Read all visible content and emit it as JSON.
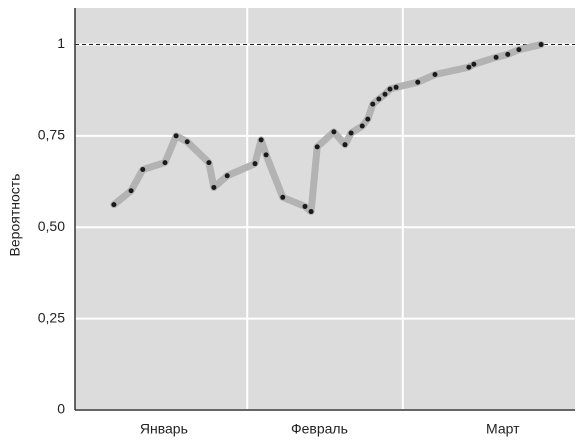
{
  "chart_data": {
    "type": "line",
    "ylabel": "Вероятность",
    "x": [
      7.0,
      10.1,
      12.2,
      16.2,
      18.2,
      20.2,
      24.1,
      25.0,
      27.4,
      32.4,
      33.5,
      34.4,
      37.4,
      41.4,
      42.5,
      43.6,
      46.6,
      48.6,
      49.7,
      51.7,
      52.7,
      53.6,
      54.7,
      55.8,
      56.7,
      57.8,
      61.7,
      64.8,
      70.9,
      71.8,
      75.8,
      77.9,
      79.9,
      83.9
    ],
    "series": [
      {
        "color": "#b3b3b3",
        "marker_color": "#1a1a1a",
        "values": [
          0.562,
          0.6,
          0.658,
          0.677,
          0.75,
          0.734,
          0.677,
          0.609,
          0.641,
          0.674,
          0.739,
          0.698,
          0.582,
          0.557,
          0.543,
          0.72,
          0.761,
          0.726,
          0.758,
          0.777,
          0.796,
          0.837,
          0.851,
          0.864,
          0.878,
          0.883,
          0.897,
          0.918,
          0.938,
          0.946,
          0.965,
          0.973,
          0.986,
          1.0
        ]
      }
    ],
    "xlim": [
      0,
      90
    ],
    "xticks": [
      {
        "value": 16,
        "label": "Январь"
      },
      {
        "value": 44,
        "label": "Февраль"
      },
      {
        "value": 77,
        "label": "Март"
      }
    ],
    "xgrid": [
      31,
      59
    ],
    "ylim": [
      0,
      1.1
    ],
    "yticks": [
      0,
      {
        "value": 0.25,
        "label": "0,25"
      },
      {
        "value": 0.5,
        "label": "0,50"
      },
      {
        "value": 0.75,
        "label": "0,75"
      },
      1
    ],
    "reference_line": 1,
    "grid": true,
    "background": "#dcdcdc"
  }
}
